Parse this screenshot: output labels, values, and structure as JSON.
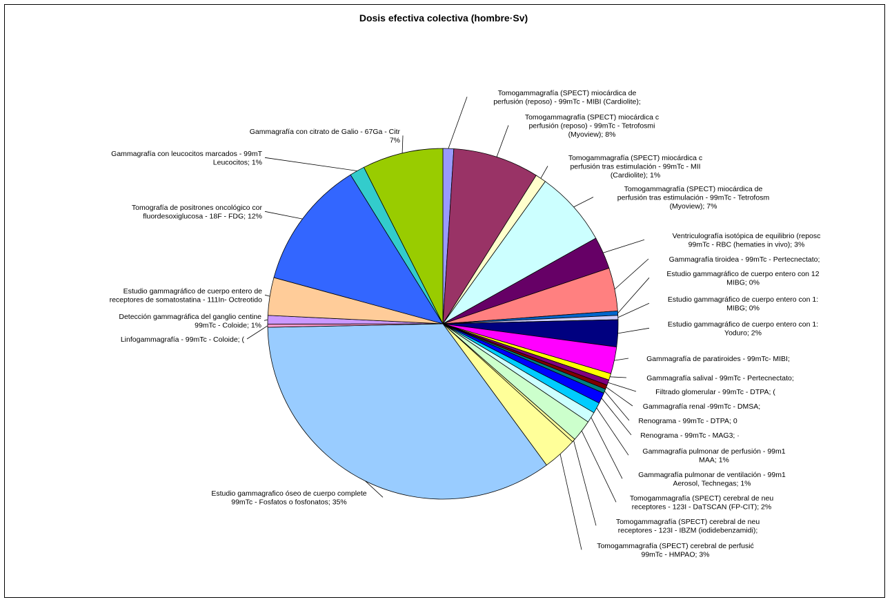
{
  "chart_data": {
    "type": "pie",
    "title": "Dosis efectiva colectiva (hombre·Sv)",
    "slices": [
      {
        "label": [
          "Tomogammagrafía (SPECT) miocárdica de",
          "perfusión (reposo) - 99mTc - MIBI (Cardiolite);"
        ],
        "value": 1,
        "color": "#9999FF"
      },
      {
        "label": [
          "Tomogammagrafía (SPECT) miocárdica c",
          "perfusión (reposo) - 99mTc - Tetrofosmi",
          "(Myoview); 8%"
        ],
        "value": 8,
        "color": "#993366"
      },
      {
        "label": [
          "Tomogammagrafía (SPECT) miocárdica c",
          "perfusión tras estimulación - 99mTc - MII",
          "(Cardiolite); 1%"
        ],
        "value": 1,
        "color": "#FFFFCC"
      },
      {
        "label": [
          "Tomogammagrafía (SPECT) miocárdica de",
          "perfusión tras estimulación - 99mTc - Tetrofosm",
          "(Myoview); 7%"
        ],
        "value": 7,
        "color": "#CCFFFF"
      },
      {
        "label": [
          "Ventriculografía isotópica de equilibrio (reposc",
          "99mTc - RBC (hematies in vivo); 3%"
        ],
        "value": 3,
        "color": "#660066"
      },
      {
        "label": [
          "Gammagrafía tiroidea - 99mTc - Pertecnectato;"
        ],
        "value": 4,
        "color": "#FF8080"
      },
      {
        "label": [
          "Estudio gammagráfico de cuerpo entero con 12",
          "MIBG; 0%"
        ],
        "value": 0.4,
        "color": "#0066CC"
      },
      {
        "label": [
          "Estudio gammagráfico de cuerpo entero con 1:",
          "MIBG; 0%"
        ],
        "value": 0.4,
        "color": "#CCCCFF"
      },
      {
        "label": [
          "Estudio gammagráfico de cuerpo entero con 1:",
          "Yoduro; 2%"
        ],
        "value": 2.5,
        "color": "#000080"
      },
      {
        "label": [
          "Gammagrafía de paratiroides - 99mTc- MIBI;"
        ],
        "value": 2.5,
        "color": "#FF00FF"
      },
      {
        "label": [
          "Gammagrafía salival - 99mTc - Pertecnectato;"
        ],
        "value": 0.6,
        "color": "#FFFF00"
      },
      {
        "label": [
          "Filtrado glomerular - 99mTc - DTPA; ("
        ],
        "value": 0.5,
        "color": "#800080"
      },
      {
        "label": [
          "Gammagrafía renal -99mTc - DMSA;"
        ],
        "value": 0.4,
        "color": "#800000"
      },
      {
        "label": [
          "Renograma - 99mTc - DTPA; 0"
        ],
        "value": 0.4,
        "color": "#008080"
      },
      {
        "label": [
          "Renograma - 99mTc - MAG3; ·"
        ],
        "value": 1,
        "color": "#0000FF"
      },
      {
        "label": [
          "Gammagrafía pulmonar de perfusión - 99m1",
          "MAA; 1%"
        ],
        "value": 1,
        "color": "#00CCFF"
      },
      {
        "label": [
          "Gammagrafía pulmonar de ventilación - 99m1",
          "Aerosol, Technegas; 1%"
        ],
        "value": 1,
        "color": "#CCFFFF"
      },
      {
        "label": [
          "Tomogammagrafía (SPECT) cerebral de neu",
          "receptores - 123I - DaTSCAN (FP-CIT); 2%"
        ],
        "value": 2,
        "color": "#CCFFCC"
      },
      {
        "label": [
          "Tomogammagrafía (SPECT) cerebral de neu",
          "receptores - 123I - IBZM (iodidebenzamidi);"
        ],
        "value": 0.3,
        "color": "#FFFF99"
      },
      {
        "label": [
          "Tomogammagrafía (SPECT) cerebral de perfusić",
          "99mTc - HMPAO; 3%"
        ],
        "value": 3.2,
        "color": "#FFFF99"
      },
      {
        "label": [
          "Estudio gammagrafico óseo de cuerpo complete",
          "99mTc - Fosfatos o fosfonatos; 35%"
        ],
        "value": 35,
        "color": "#99CCFF"
      },
      {
        "label": [
          "Linfogammagrafía - 99mTc - Coloide; ("
        ],
        "value": 0.3,
        "color": "#FF99CC"
      },
      {
        "label": [
          "Detección gammagráfica del ganglio centine",
          "99mTc - Coloide; 1%"
        ],
        "value": 0.8,
        "color": "#CC99FF"
      },
      {
        "label": [
          "Estudio gammagráfico de cuerpo entero de",
          "receptores de somatostatina - 111In- Octreotido"
        ],
        "value": 3.5,
        "color": "#FFCC99"
      },
      {
        "label": [
          "Tomografía de positrones oncológico cor",
          "fluordesoxiglucosa - 18F - FDG; 12%"
        ],
        "value": 12,
        "color": "#3366FF"
      },
      {
        "label": [
          "Gammagrafía con leucocitos marcados - 99mT",
          "Leucocitos; 1%"
        ],
        "value": 1.4,
        "color": "#33CCCC"
      },
      {
        "label": [
          "Gammagrafía con citrato de Galio - 67Ga - Citr",
          "7%"
        ],
        "value": 7.5,
        "color": "#99CC00"
      }
    ]
  }
}
